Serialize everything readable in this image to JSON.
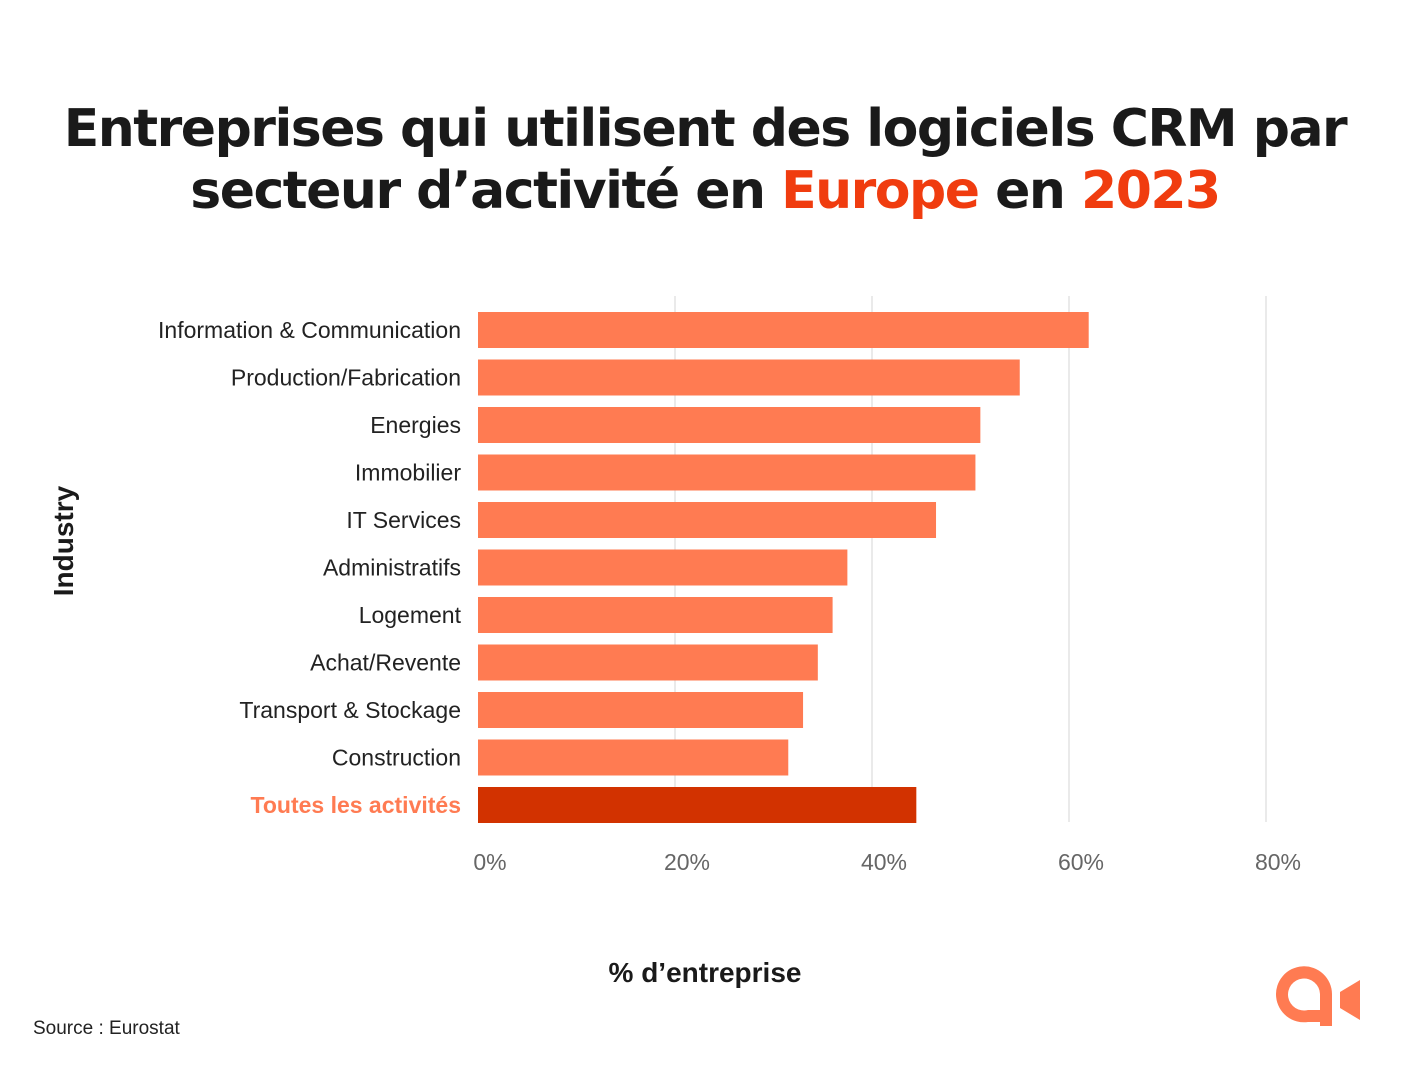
{
  "title": {
    "part1": "Entreprises qui utilisent des logiciels CRM par",
    "part2": "secteur d’activité en ",
    "highlight1": "Europe",
    "part3": " en ",
    "highlight2": "2023"
  },
  "source": "Source : Eurostat",
  "logo": "logo",
  "colors": {
    "bar": "#ff7b52",
    "highlight_bar": "#d23200",
    "highlight_label": "#ff7b52",
    "title_accent": "#f03c0f",
    "grid": "#e3e3e3"
  },
  "chart_data": {
    "type": "bar",
    "orientation": "horizontal",
    "xlabel": "% d’entreprise",
    "ylabel": "Industry",
    "xlim": [
      0,
      80
    ],
    "xticks": [
      "0%",
      "20%",
      "40%",
      "60%",
      "80%"
    ],
    "grid": true,
    "categories": [
      "Information & Communication",
      "Production/Fabrication",
      "Energies",
      "Immobilier",
      "IT Services",
      "Administratifs",
      "Logement",
      "Achat/Revente",
      "Transport & Stockage",
      "Construction",
      "Toutes les activités"
    ],
    "values": [
      62,
      55,
      51,
      50.5,
      46.5,
      37.5,
      36,
      34.5,
      33,
      31.5,
      44.5
    ],
    "highlighted": "Toutes les activités"
  }
}
